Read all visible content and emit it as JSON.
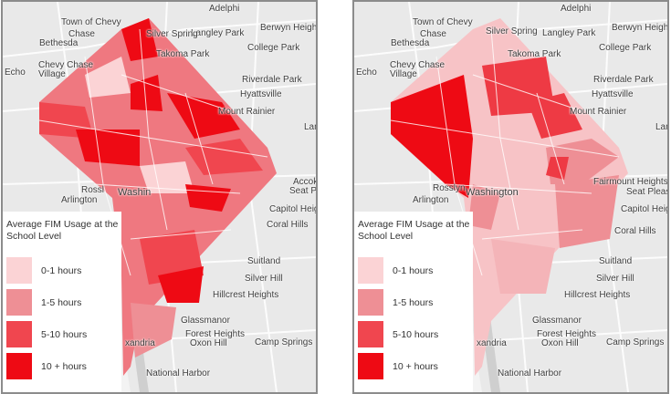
{
  "legend": {
    "title": "Average FIM Usage at the School Level",
    "items": [
      {
        "label": "0-1 hours",
        "color": "#fbd3d5"
      },
      {
        "label": "1-5 hours",
        "color": "#ee8f95"
      },
      {
        "label": "5-10 hours",
        "color": "#f0464f"
      },
      {
        "label": "10 + hours",
        "color": "#ee0a14"
      }
    ]
  },
  "maps": [
    {
      "name": "left",
      "labels": {
        "town_of_chevy": "Town of Chevy",
        "chase": "Chase",
        "adelphi": "Adelphi",
        "berwyn_heights": "Berwyn Heights",
        "bethesda": "Bethesda",
        "langley_park": "Langley Park",
        "silver_spring": "Silver Spring",
        "college_park": "College Park",
        "takoma_park": "Takoma Park",
        "chevy_chase_village": "Chevy Chase Village",
        "riverdale_park": "Riverdale Park",
        "echo": "Echo",
        "hyattsville": "Hyattsville",
        "mount_rainier": "Mount Rainier",
        "land": "Land",
        "rossl": "Rossl",
        "washington": "Washin",
        "arlington": "Arlington",
        "seat_pleasant": "Seat Pleas",
        "capitol_heights": "Capitol Heights",
        "coral_hills": "Coral Hills",
        "silver_hill": "Silver Hill",
        "suitland": "Suitland",
        "hillcrest_heights": "Hillcrest Heights",
        "glassmanor": "Glassmanor",
        "forest_heights": "Forest Heights",
        "oxon_hill": "Oxon Hill",
        "camp_springs": "Camp Springs",
        "alexandria": "xandria",
        "national_harbor": "National Harbor",
        "accokeek_height": "Accokeek Height"
      }
    },
    {
      "name": "right",
      "labels": {
        "town_of_chevy": "Town of Chevy",
        "chase": "Chase",
        "adelphi": "Adelphi",
        "berwyn_heights": "Berwyn Heights",
        "bethesda": "Bethesda",
        "langley_park": "Langley Park",
        "silver_spring": "Silver Spring",
        "college_park": "College Park",
        "takoma_park": "Takoma Park",
        "chevy_chase_village": "Chevy Chase Village",
        "riverdale_park": "Riverdale Park",
        "echo": "Echo",
        "hyattsville": "Hyattsville",
        "mount_rainier": "Mount Rainier",
        "land": "Land",
        "rosslyn": "Rosslyn",
        "washington": "Washington",
        "arlington": "Arlington",
        "fairmount_heights": "Fairmount Heights",
        "seat_pleasant": "Seat Pleasa",
        "capitol_heights": "Capitol Heights",
        "coral_hills": "Coral Hills",
        "silver_hill": "Silver Hill",
        "suitland": "Suitland",
        "hillcrest_heights": "Hillcrest Heights",
        "glassmanor": "Glassmanor",
        "forest_heights": "Forest Heights",
        "oxon_hill": "Oxon Hill",
        "camp_springs": "Camp Springs",
        "alexandria": "xandria",
        "national_harbor": "National Harbor"
      }
    }
  ]
}
